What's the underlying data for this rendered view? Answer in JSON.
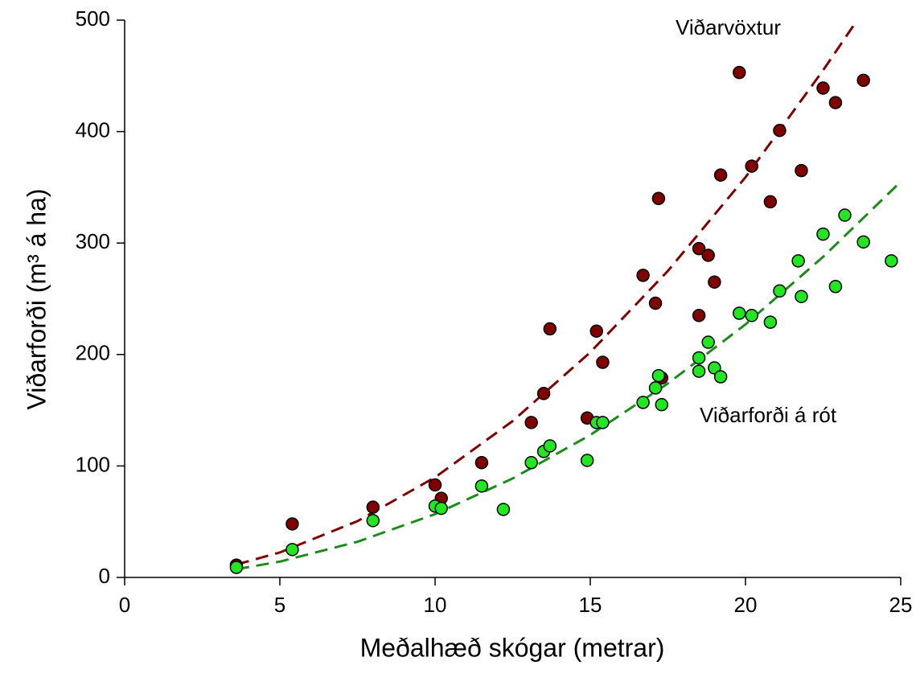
{
  "chart_data": {
    "type": "scatter",
    "xlabel": "Meðalhæð skógar (metrar)",
    "ylabel": "Viðarforði (m³ á ha)",
    "xlim": [
      0,
      25
    ],
    "xticks": [
      0,
      5,
      10,
      15,
      20,
      25
    ],
    "ylim": [
      0,
      500
    ],
    "yticks": [
      0,
      100,
      200,
      300,
      400,
      500
    ],
    "series": [
      {
        "name": "Viðarvöxtur",
        "color": "#800000",
        "line_color": "#800000",
        "x": [
          3.6,
          5.4,
          8.0,
          10.0,
          10.2,
          11.5,
          13.1,
          13.5,
          13.7,
          14.9,
          15.2,
          15.4,
          16.7,
          17.1,
          17.2,
          17.3,
          18.5,
          18.5,
          18.8,
          19.0,
          19.2,
          19.8,
          20.2,
          20.8,
          21.1,
          21.8,
          22.5,
          22.9,
          23.8
        ],
        "values": [
          11,
          48,
          63,
          83,
          71,
          103,
          139,
          165,
          223,
          143,
          221,
          193,
          271,
          246,
          340,
          179,
          235,
          295,
          289,
          265,
          361,
          453,
          369,
          337,
          401,
          365,
          439,
          426,
          446
        ],
        "trend": {
          "x": [
            3.6,
            5,
            7.5,
            10,
            12.5,
            15,
            17.5,
            20,
            22.5,
            23.6
          ],
          "values": [
            11.6,
            22.4,
            50.5,
            89.8,
            140.3,
            202,
            275,
            359,
            455,
            500
          ]
        }
      },
      {
        "name": "Viðarforði á rót",
        "color": "#22e622",
        "line_color": "#1a8c1a",
        "x": [
          3.6,
          5.4,
          8.0,
          10.0,
          10.2,
          11.5,
          12.2,
          13.1,
          13.5,
          13.7,
          14.9,
          15.2,
          15.4,
          16.7,
          17.1,
          17.2,
          17.3,
          18.5,
          18.5,
          18.8,
          19.0,
          19.2,
          19.8,
          20.2,
          20.8,
          21.1,
          21.7,
          21.8,
          22.5,
          22.9,
          23.2,
          23.8,
          24.7
        ],
        "values": [
          9,
          25,
          51,
          64,
          62,
          82,
          61,
          103,
          113,
          118,
          105,
          139,
          139,
          157,
          170,
          181,
          155,
          197,
          185,
          211,
          188,
          180,
          237,
          235,
          229,
          257,
          284,
          252,
          308,
          261,
          325,
          301,
          284
        ],
        "trend": {
          "x": [
            3.6,
            5,
            7.5,
            10,
            12.5,
            15,
            17.5,
            20,
            22.5,
            25
          ],
          "values": [
            7.4,
            14.2,
            32,
            56.8,
            88.8,
            127.8,
            174,
            227,
            287.6,
            355
          ]
        }
      }
    ]
  }
}
